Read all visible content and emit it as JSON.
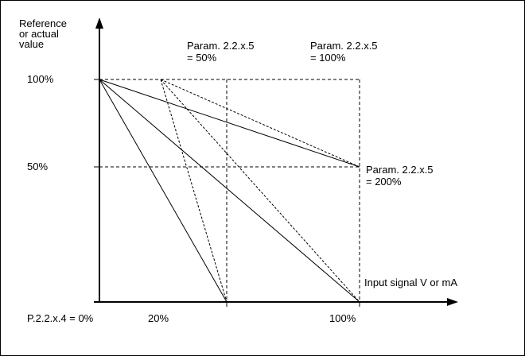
{
  "labels": {
    "y_axis_line1": "Reference",
    "y_axis_line2": "or actual",
    "y_axis_line3": "value",
    "param_50_line1": "Param. 2.2.x.5",
    "param_50_line2": "= 50%",
    "param_100_line1": "Param. 2.2.x.5",
    "param_100_line2": "= 100%",
    "param_200_line1": "Param. 2.2.x.5",
    "param_200_line2": "= 200%",
    "x_axis": "Input signal V or mA"
  },
  "y_ticks": [
    "100%",
    "50%"
  ],
  "x_ticks": [
    "P.2.2.x.4 = 0%",
    "20%",
    "100%"
  ],
  "colors": {
    "line": "#000000",
    "frame": "#000000",
    "background": "#ffffff"
  }
}
